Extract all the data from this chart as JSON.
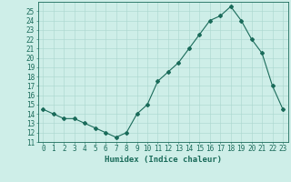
{
  "x": [
    0,
    1,
    2,
    3,
    4,
    5,
    6,
    7,
    8,
    9,
    10,
    11,
    12,
    13,
    14,
    15,
    16,
    17,
    18,
    19,
    20,
    21,
    22,
    23
  ],
  "y": [
    14.5,
    14.0,
    13.5,
    13.5,
    13.0,
    12.5,
    12.0,
    11.5,
    12.0,
    14.0,
    15.0,
    17.5,
    18.5,
    19.5,
    21.0,
    22.5,
    24.0,
    24.5,
    25.5,
    24.0,
    22.0,
    20.5,
    17.0,
    14.5
  ],
  "line_color": "#1a6b5a",
  "marker": "D",
  "marker_size": 2.0,
  "bg_color": "#ceeee8",
  "grid_color": "#aad6ce",
  "xlabel": "Humidex (Indice chaleur)",
  "xlim": [
    -0.5,
    23.5
  ],
  "ylim": [
    11,
    26
  ],
  "yticks": [
    11,
    12,
    13,
    14,
    15,
    16,
    17,
    18,
    19,
    20,
    21,
    22,
    23,
    24,
    25
  ],
  "xticks": [
    0,
    1,
    2,
    3,
    4,
    5,
    6,
    7,
    8,
    9,
    10,
    11,
    12,
    13,
    14,
    15,
    16,
    17,
    18,
    19,
    20,
    21,
    22,
    23
  ],
  "tick_color": "#1a6b5a",
  "axis_color": "#1a6b5a",
  "label_fontsize": 6.5,
  "tick_fontsize": 5.5,
  "linewidth": 0.8
}
